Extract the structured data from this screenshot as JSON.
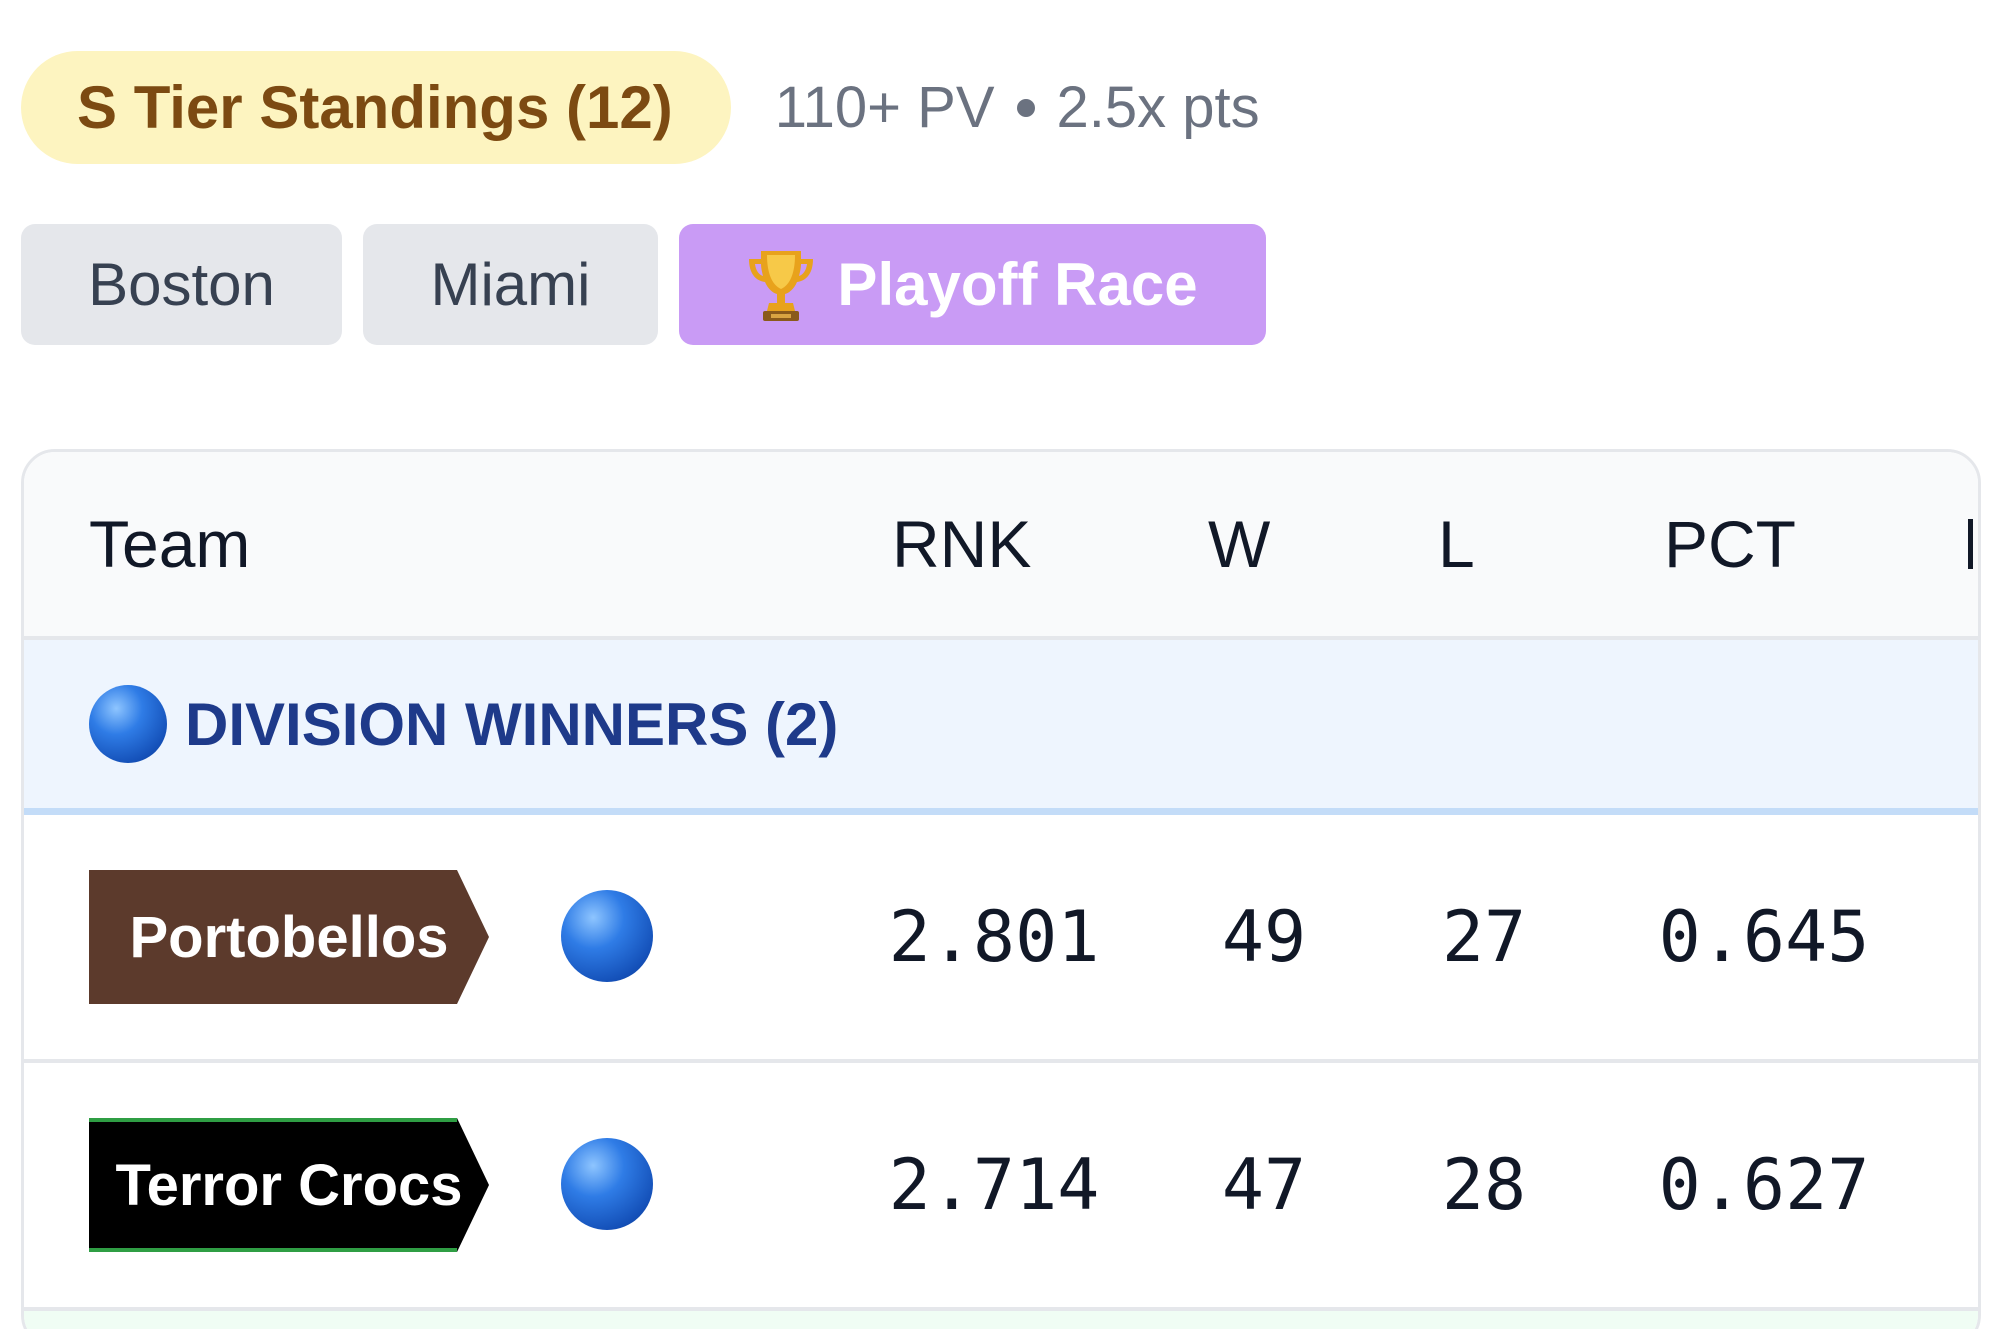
{
  "header": {
    "tier_label": "S Tier Standings (12)",
    "meta_pv": "110+ PV",
    "meta_pts": "2.5x pts"
  },
  "tabs": [
    {
      "label": "Boston",
      "active": false
    },
    {
      "label": "Miami",
      "active": false
    },
    {
      "label": "Playoff Race",
      "active": true,
      "icon": "trophy-icon"
    }
  ],
  "table": {
    "columns": {
      "team": "Team",
      "rnk": "RNK",
      "w": "W",
      "l": "L",
      "pct": "PCT"
    },
    "section": {
      "label": "DIVISION WINNERS (2)",
      "icon": "blue-circle-icon"
    },
    "rows": [
      {
        "team": "Portobellos",
        "tag_color": "#5c3a2c",
        "tag_accent": "#5c3a2c",
        "status_icon": "blue-circle-icon",
        "rnk": "2.801",
        "w": "49",
        "l": "27",
        "pct": "0.645"
      },
      {
        "team": "Terror Crocs",
        "tag_color": "#000000",
        "tag_accent": "#2f9e44",
        "status_icon": "blue-circle-icon",
        "rnk": "2.714",
        "w": "47",
        "l": "28",
        "pct": "0.627"
      }
    ]
  },
  "colors": {
    "tier_badge_bg": "#fdf4c0",
    "tier_badge_text": "#7c4a12",
    "active_tab_bg": "#c99bf5",
    "section_bg": "#eef5fe",
    "section_text": "#1e3a8a"
  }
}
